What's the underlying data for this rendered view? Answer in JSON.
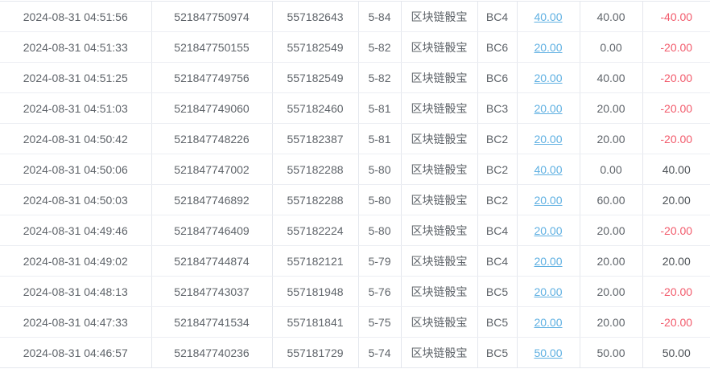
{
  "colors": {
    "link_blue": "#5fb0e2",
    "negative_red": "#f25b6c",
    "text_dark": "#484d53",
    "text_gray": "#5f646a",
    "border_light": "#e4e7ed",
    "row_divider": "#eceef3"
  },
  "table": {
    "game_name": "区块链骰宝",
    "rows": [
      {
        "time": "2024-08-31 04:51:56",
        "order_no": "521847750974",
        "round_no": "557182643",
        "period": "5-84",
        "game": "区块链骰宝",
        "play": "BC4",
        "bet_amount": "40.00",
        "valid_amount": "40.00",
        "win_loss": "-40.00"
      },
      {
        "time": "2024-08-31 04:51:33",
        "order_no": "521847750155",
        "round_no": "557182549",
        "period": "5-82",
        "game": "区块链骰宝",
        "play": "BC6",
        "bet_amount": "20.00",
        "valid_amount": "0.00",
        "win_loss": "-20.00"
      },
      {
        "time": "2024-08-31 04:51:25",
        "order_no": "521847749756",
        "round_no": "557182549",
        "period": "5-82",
        "game": "区块链骰宝",
        "play": "BC6",
        "bet_amount": "20.00",
        "valid_amount": "40.00",
        "win_loss": "-20.00"
      },
      {
        "time": "2024-08-31 04:51:03",
        "order_no": "521847749060",
        "round_no": "557182460",
        "period": "5-81",
        "game": "区块链骰宝",
        "play": "BC3",
        "bet_amount": "20.00",
        "valid_amount": "20.00",
        "win_loss": "-20.00"
      },
      {
        "time": "2024-08-31 04:50:42",
        "order_no": "521847748226",
        "round_no": "557182387",
        "period": "5-81",
        "game": "区块链骰宝",
        "play": "BC2",
        "bet_amount": "20.00",
        "valid_amount": "20.00",
        "win_loss": "-20.00"
      },
      {
        "time": "2024-08-31 04:50:06",
        "order_no": "521847747002",
        "round_no": "557182288",
        "period": "5-80",
        "game": "区块链骰宝",
        "play": "BC2",
        "bet_amount": "40.00",
        "valid_amount": "0.00",
        "win_loss": "40.00"
      },
      {
        "time": "2024-08-31 04:50:03",
        "order_no": "521847746892",
        "round_no": "557182288",
        "period": "5-80",
        "game": "区块链骰宝",
        "play": "BC2",
        "bet_amount": "20.00",
        "valid_amount": "60.00",
        "win_loss": "20.00"
      },
      {
        "time": "2024-08-31 04:49:46",
        "order_no": "521847746409",
        "round_no": "557182224",
        "period": "5-80",
        "game": "区块链骰宝",
        "play": "BC4",
        "bet_amount": "20.00",
        "valid_amount": "20.00",
        "win_loss": "-20.00"
      },
      {
        "time": "2024-08-31 04:49:02",
        "order_no": "521847744874",
        "round_no": "557182121",
        "period": "5-79",
        "game": "区块链骰宝",
        "play": "BC4",
        "bet_amount": "20.00",
        "valid_amount": "20.00",
        "win_loss": "20.00"
      },
      {
        "time": "2024-08-31 04:48:13",
        "order_no": "521847743037",
        "round_no": "557181948",
        "period": "5-76",
        "game": "区块链骰宝",
        "play": "BC5",
        "bet_amount": "20.00",
        "valid_amount": "20.00",
        "win_loss": "-20.00"
      },
      {
        "time": "2024-08-31 04:47:33",
        "order_no": "521847741534",
        "round_no": "557181841",
        "period": "5-75",
        "game": "区块链骰宝",
        "play": "BC5",
        "bet_amount": "20.00",
        "valid_amount": "20.00",
        "win_loss": "-20.00"
      },
      {
        "time": "2024-08-31 04:46:57",
        "order_no": "521847740236",
        "round_no": "557181729",
        "period": "5-74",
        "game": "区块链骰宝",
        "play": "BC5",
        "bet_amount": "50.00",
        "valid_amount": "50.00",
        "win_loss": "50.00"
      }
    ]
  }
}
